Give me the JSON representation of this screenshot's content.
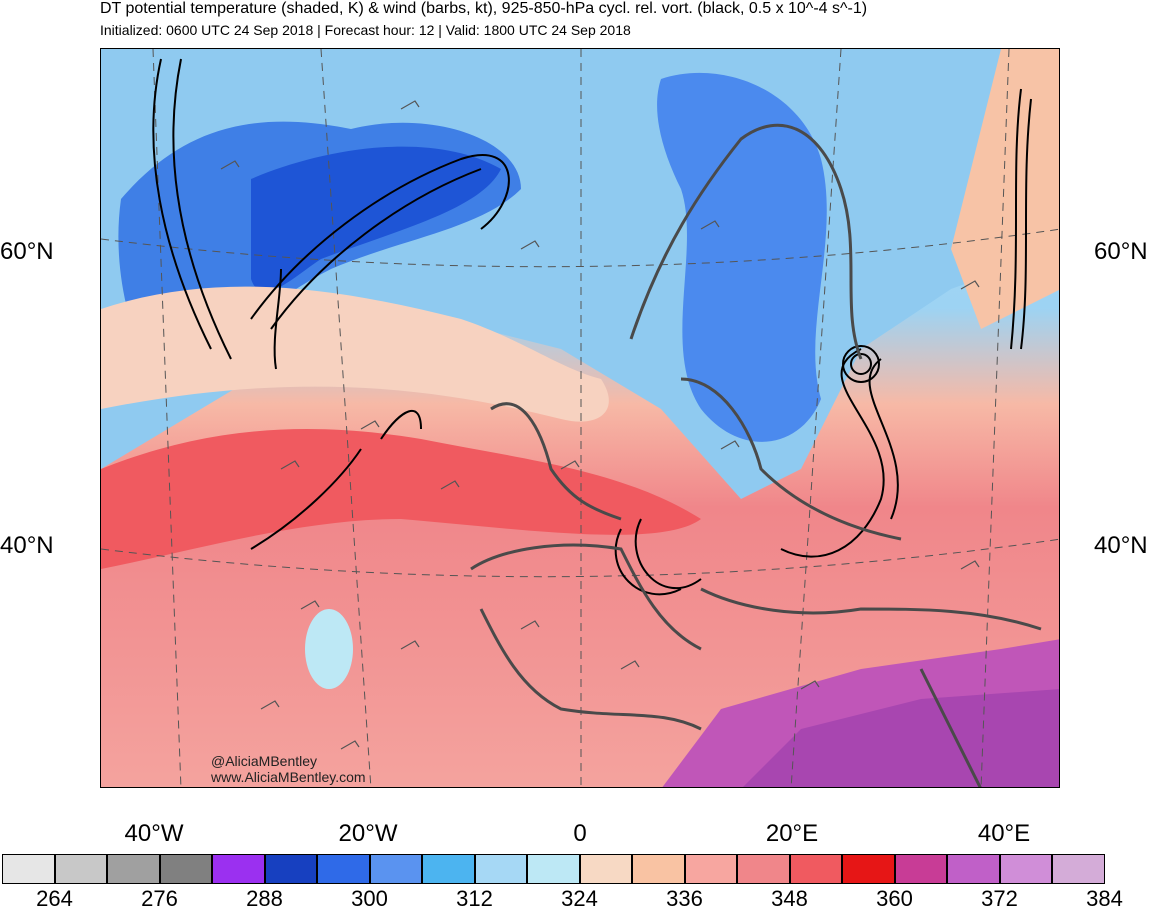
{
  "header": {
    "title": "DT potential temperature (shaded, K) & wind (barbs, kt), 925-850-hPa cycl. rel. vort. (black, 0.5 x 10^-4 s^-1)",
    "subtitle": "Initialized: 0600 UTC 24 Sep 2018 | Forecast hour: 12 | Valid: 1800 UTC 24 Sep 2018"
  },
  "map": {
    "lat_labels": {
      "left_60": "60°N",
      "right_60": "60°N",
      "left_40": "40°N",
      "right_40": "40°N"
    },
    "lon_labels": {
      "w40": "40°W",
      "w20": "20°W",
      "zero": "0",
      "e20": "20°E",
      "e40": "40°E"
    },
    "credit": {
      "handle": "@AliciaMBentley",
      "site": "www.AliciaMBentley.com"
    }
  },
  "colorbar": {
    "colors": [
      "#e6e6e6",
      "#c8c8c8",
      "#a0a0a0",
      "#808080",
      "#9b30f0",
      "#1740c0",
      "#2f6ae8",
      "#5a93f0",
      "#4cb4f0",
      "#a6d8f5",
      "#bde8f5",
      "#f7d9c4",
      "#f9c3a3",
      "#f7a6a0",
      "#f0868a",
      "#f05a60",
      "#e61616",
      "#c83c96",
      "#c060c8",
      "#d08ed8",
      "#d4acd8"
    ],
    "labels": [
      "264",
      "276",
      "288",
      "300",
      "312",
      "324",
      "336",
      "348",
      "360",
      "372",
      "384"
    ]
  }
}
